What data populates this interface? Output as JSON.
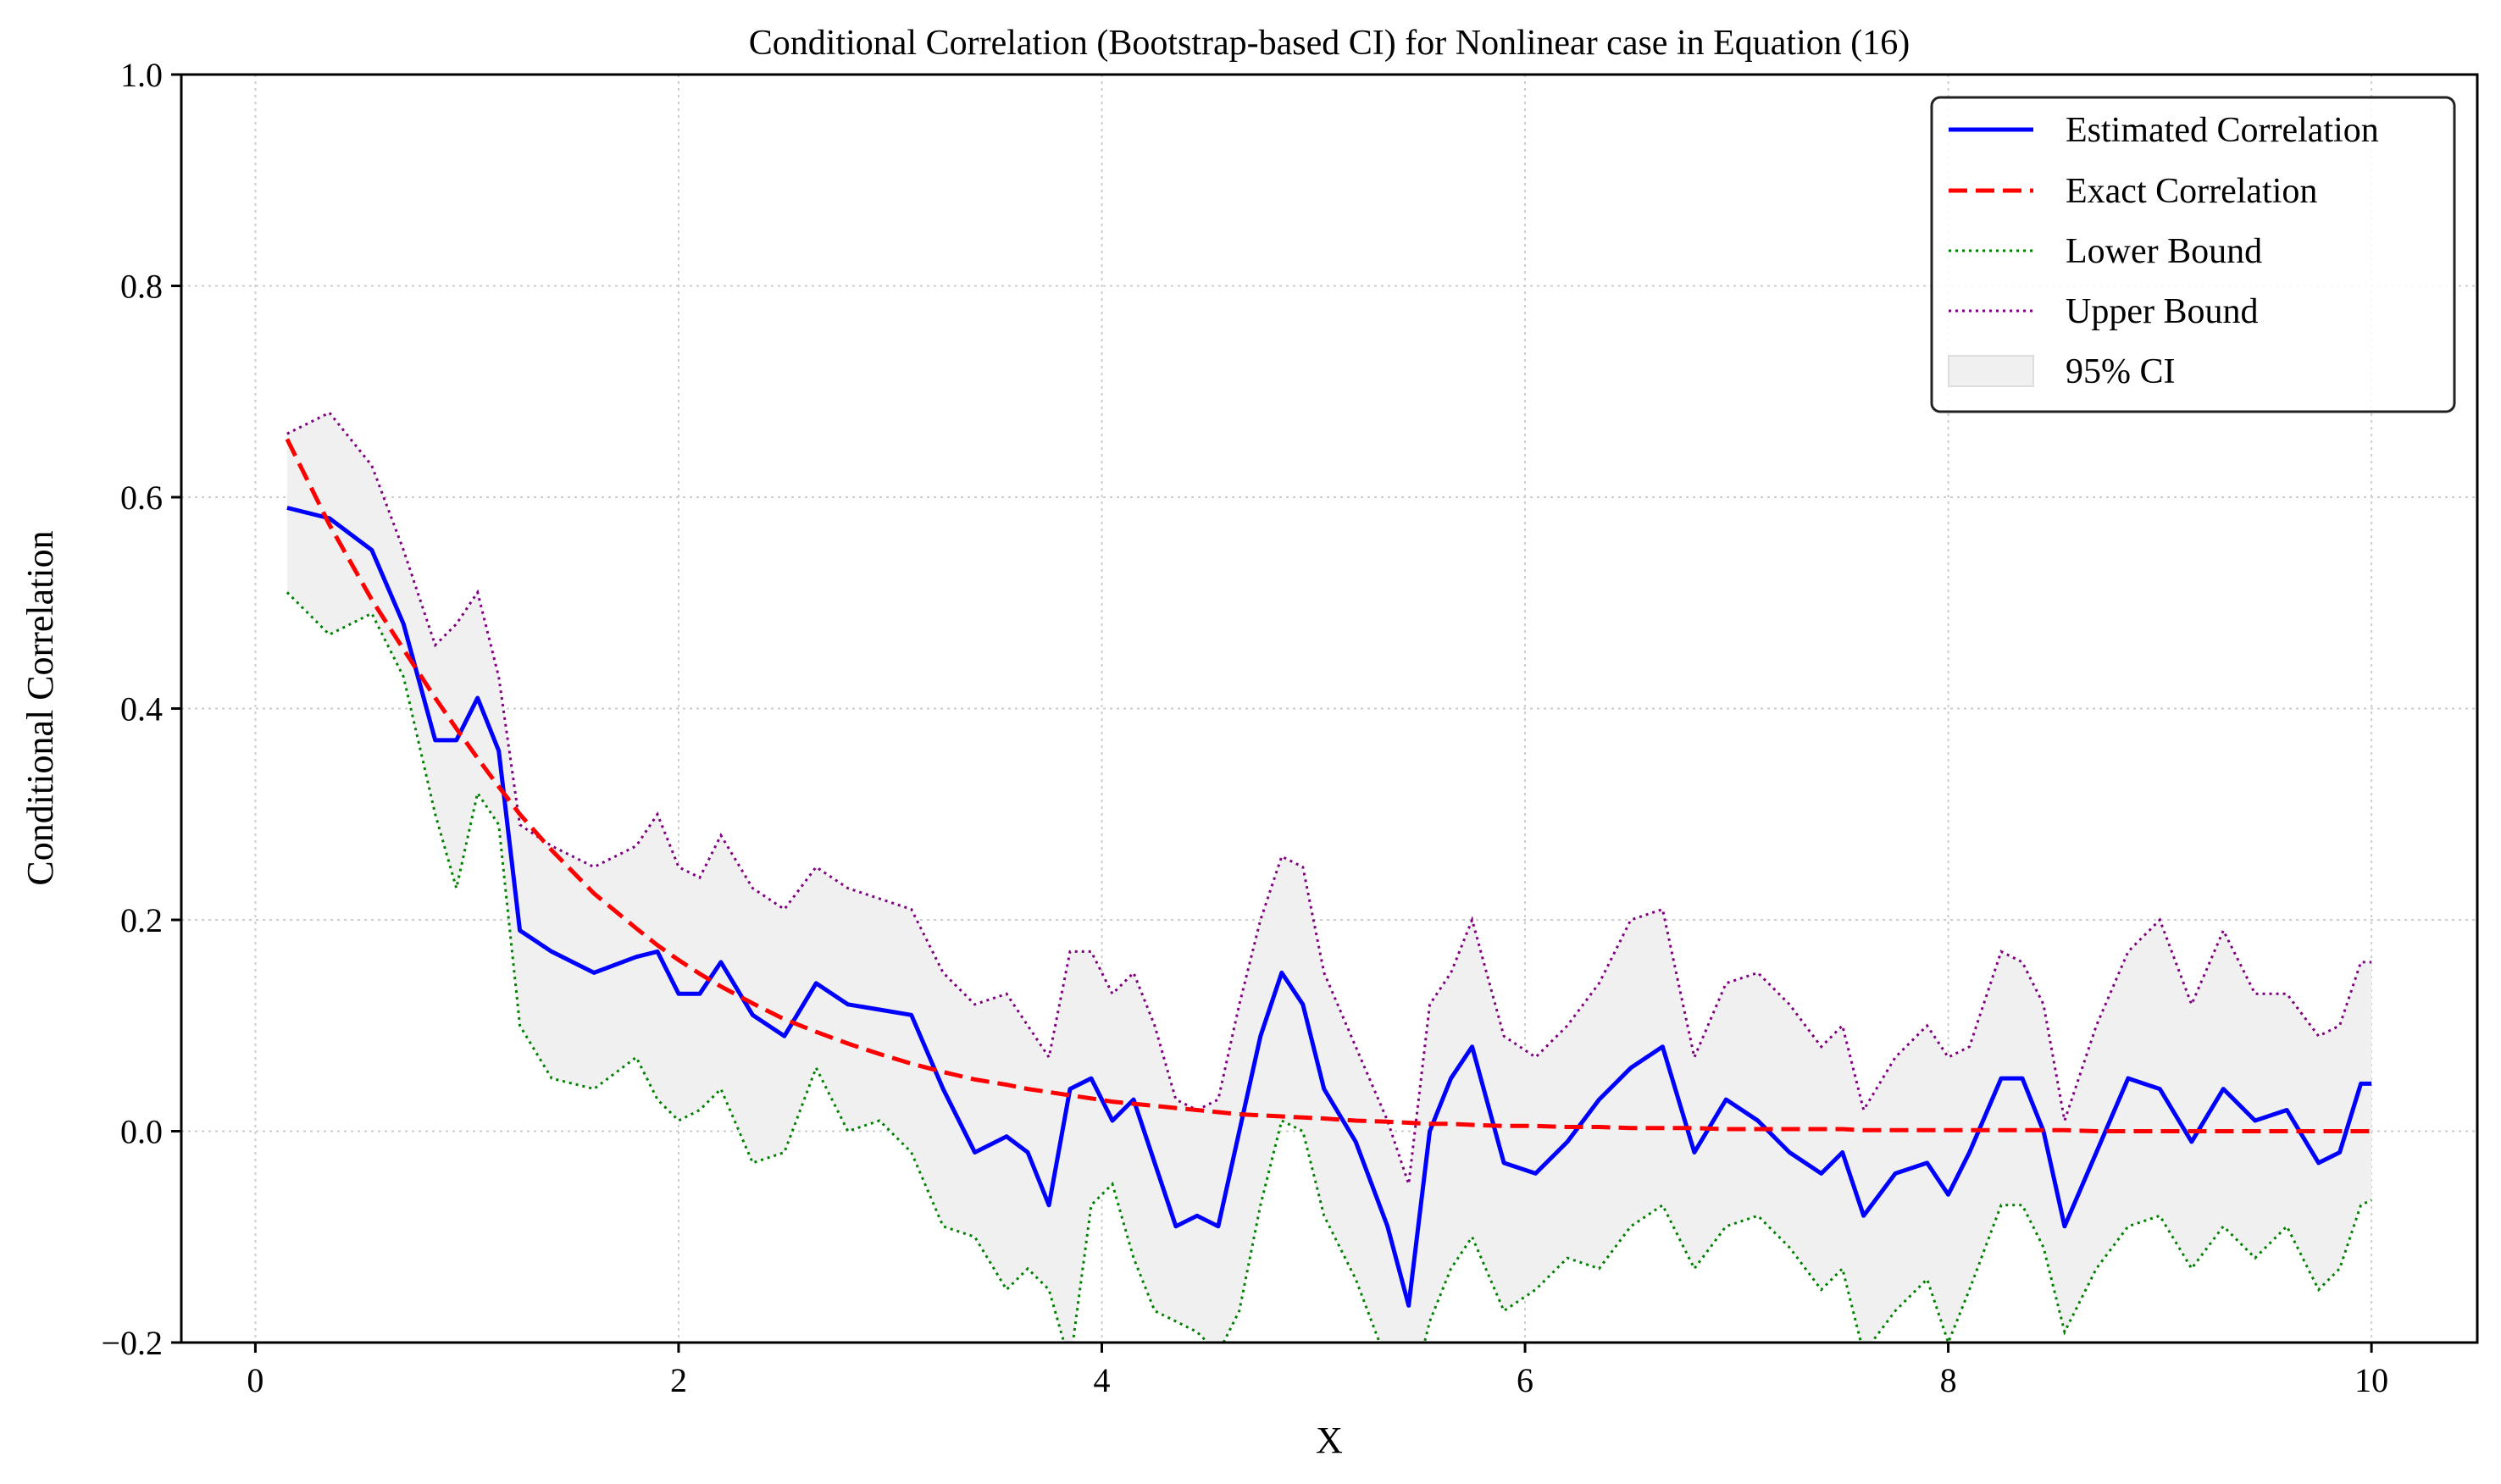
{
  "chart_data": {
    "type": "line",
    "title": "Conditional Correlation (Bootstrap-based CI) for Nonlinear case in Equation (16)",
    "xlabel": "X",
    "ylabel": "Conditional Correlation",
    "xlim": [
      -0.35,
      10.5
    ],
    "ylim": [
      -0.2,
      1.0
    ],
    "xticks": [
      0,
      2,
      4,
      6,
      8,
      10
    ],
    "xtick_labels": [
      "0",
      "2",
      "4",
      "6",
      "8",
      "10"
    ],
    "yticks": [
      -0.2,
      0.0,
      0.2,
      0.4,
      0.6,
      0.8,
      1.0
    ],
    "ytick_labels": [
      "−0.2",
      "0.0",
      "0.2",
      "0.4",
      "0.6",
      "0.8",
      "1.0"
    ],
    "grid": true,
    "legend_position": "top-right",
    "colors": {
      "estimated": "#0000ff",
      "exact": "#ff0000",
      "lower": "#008000",
      "upper": "#800080",
      "ci_fill": "#f0f0f0"
    },
    "legend": [
      {
        "label": "Estimated Correlation",
        "style": "solid"
      },
      {
        "label": "Exact Correlation",
        "style": "dashed"
      },
      {
        "label": "Lower Bound",
        "style": "dotted-green"
      },
      {
        "label": "Upper Bound",
        "style": "dotted-purple"
      },
      {
        "label": "95% CI",
        "style": "fill"
      }
    ],
    "x": [
      0.15,
      0.35,
      0.55,
      0.7,
      0.85,
      0.95,
      1.05,
      1.15,
      1.25,
      1.4,
      1.6,
      1.8,
      1.9,
      2.0,
      2.1,
      2.2,
      2.35,
      2.5,
      2.65,
      2.8,
      2.95,
      3.1,
      3.25,
      3.4,
      3.55,
      3.65,
      3.75,
      3.85,
      3.95,
      4.05,
      4.15,
      4.25,
      4.35,
      4.45,
      4.55,
      4.65,
      4.75,
      4.85,
      4.95,
      5.05,
      5.2,
      5.35,
      5.45,
      5.55,
      5.65,
      5.75,
      5.9,
      6.05,
      6.2,
      6.35,
      6.5,
      6.65,
      6.8,
      6.95,
      7.1,
      7.25,
      7.4,
      7.5,
      7.6,
      7.75,
      7.9,
      8.0,
      8.1,
      8.25,
      8.35,
      8.45,
      8.55,
      8.7,
      8.85,
      9.0,
      9.15,
      9.3,
      9.45,
      9.6,
      9.75,
      9.85,
      9.95,
      10.0
    ],
    "series": [
      {
        "name": "Estimated Correlation",
        "values": [
          0.59,
          0.58,
          0.55,
          0.48,
          0.37,
          0.37,
          0.41,
          0.36,
          0.19,
          0.17,
          0.15,
          0.165,
          0.17,
          0.13,
          0.13,
          0.16,
          0.11,
          0.09,
          0.14,
          0.12,
          0.115,
          0.11,
          0.04,
          -0.02,
          -0.005,
          -0.02,
          -0.07,
          0.04,
          0.05,
          0.01,
          0.03,
          -0.03,
          -0.09,
          -0.08,
          -0.09,
          0.0,
          0.09,
          0.15,
          0.12,
          0.04,
          -0.01,
          -0.09,
          -0.165,
          0.0,
          0.05,
          0.08,
          -0.03,
          -0.04,
          -0.01,
          0.03,
          0.06,
          0.08,
          -0.02,
          0.03,
          0.01,
          -0.02,
          -0.04,
          -0.02,
          -0.08,
          -0.04,
          -0.03,
          -0.06,
          -0.02,
          0.05,
          0.05,
          0.0,
          -0.09,
          -0.02,
          0.05,
          0.04,
          -0.01,
          0.04,
          0.01,
          0.02,
          -0.03,
          -0.02,
          0.045,
          0.045
        ]
      },
      {
        "name": "Exact Correlation",
        "values": [
          0.655,
          0.574,
          0.503,
          0.456,
          0.41,
          0.381,
          0.353,
          0.326,
          0.3,
          0.266,
          0.225,
          0.192,
          0.176,
          0.162,
          0.149,
          0.137,
          0.121,
          0.106,
          0.094,
          0.083,
          0.073,
          0.064,
          0.056,
          0.049,
          0.044,
          0.04,
          0.037,
          0.034,
          0.031,
          0.028,
          0.026,
          0.024,
          0.022,
          0.02,
          0.018,
          0.016,
          0.015,
          0.014,
          0.013,
          0.012,
          0.01,
          0.009,
          0.008,
          0.007,
          0.007,
          0.006,
          0.005,
          0.005,
          0.004,
          0.004,
          0.003,
          0.003,
          0.003,
          0.002,
          0.002,
          0.002,
          0.002,
          0.002,
          0.001,
          0.001,
          0.001,
          0.001,
          0.001,
          0.001,
          0.001,
          0.001,
          0.001,
          0.0,
          0.0,
          0.0,
          0.0,
          0.0,
          0.0,
          0.0,
          0.0,
          0.0,
          0.0,
          0.0
        ]
      },
      {
        "name": "Lower Bound",
        "values": [
          0.51,
          0.47,
          0.49,
          0.43,
          0.3,
          0.23,
          0.32,
          0.29,
          0.1,
          0.05,
          0.04,
          0.07,
          0.03,
          0.01,
          0.02,
          0.04,
          -0.03,
          -0.02,
          0.06,
          0.0,
          0.01,
          -0.02,
          -0.09,
          -0.1,
          -0.15,
          -0.13,
          -0.15,
          -0.22,
          -0.07,
          -0.05,
          -0.12,
          -0.17,
          -0.18,
          -0.19,
          -0.21,
          -0.17,
          -0.07,
          0.01,
          0.0,
          -0.08,
          -0.14,
          -0.22,
          -0.26,
          -0.18,
          -0.13,
          -0.1,
          -0.17,
          -0.15,
          -0.12,
          -0.13,
          -0.09,
          -0.07,
          -0.13,
          -0.09,
          -0.08,
          -0.11,
          -0.15,
          -0.13,
          -0.21,
          -0.17,
          -0.14,
          -0.2,
          -0.15,
          -0.07,
          -0.07,
          -0.11,
          -0.19,
          -0.13,
          -0.09,
          -0.08,
          -0.13,
          -0.09,
          -0.12,
          -0.09,
          -0.15,
          -0.13,
          -0.07,
          -0.065
        ]
      },
      {
        "name": "Upper Bound",
        "values": [
          0.66,
          0.68,
          0.63,
          0.55,
          0.46,
          0.48,
          0.51,
          0.43,
          0.29,
          0.27,
          0.25,
          0.27,
          0.3,
          0.25,
          0.24,
          0.28,
          0.23,
          0.21,
          0.25,
          0.23,
          0.22,
          0.21,
          0.15,
          0.12,
          0.13,
          0.1,
          0.07,
          0.17,
          0.17,
          0.13,
          0.15,
          0.1,
          0.03,
          0.02,
          0.03,
          0.12,
          0.2,
          0.26,
          0.25,
          0.15,
          0.08,
          0.01,
          -0.05,
          0.12,
          0.15,
          0.2,
          0.09,
          0.07,
          0.1,
          0.14,
          0.2,
          0.21,
          0.07,
          0.14,
          0.15,
          0.12,
          0.08,
          0.1,
          0.02,
          0.07,
          0.1,
          0.07,
          0.08,
          0.17,
          0.16,
          0.12,
          0.01,
          0.1,
          0.17,
          0.2,
          0.12,
          0.19,
          0.13,
          0.13,
          0.09,
          0.1,
          0.16,
          0.16
        ]
      }
    ]
  }
}
